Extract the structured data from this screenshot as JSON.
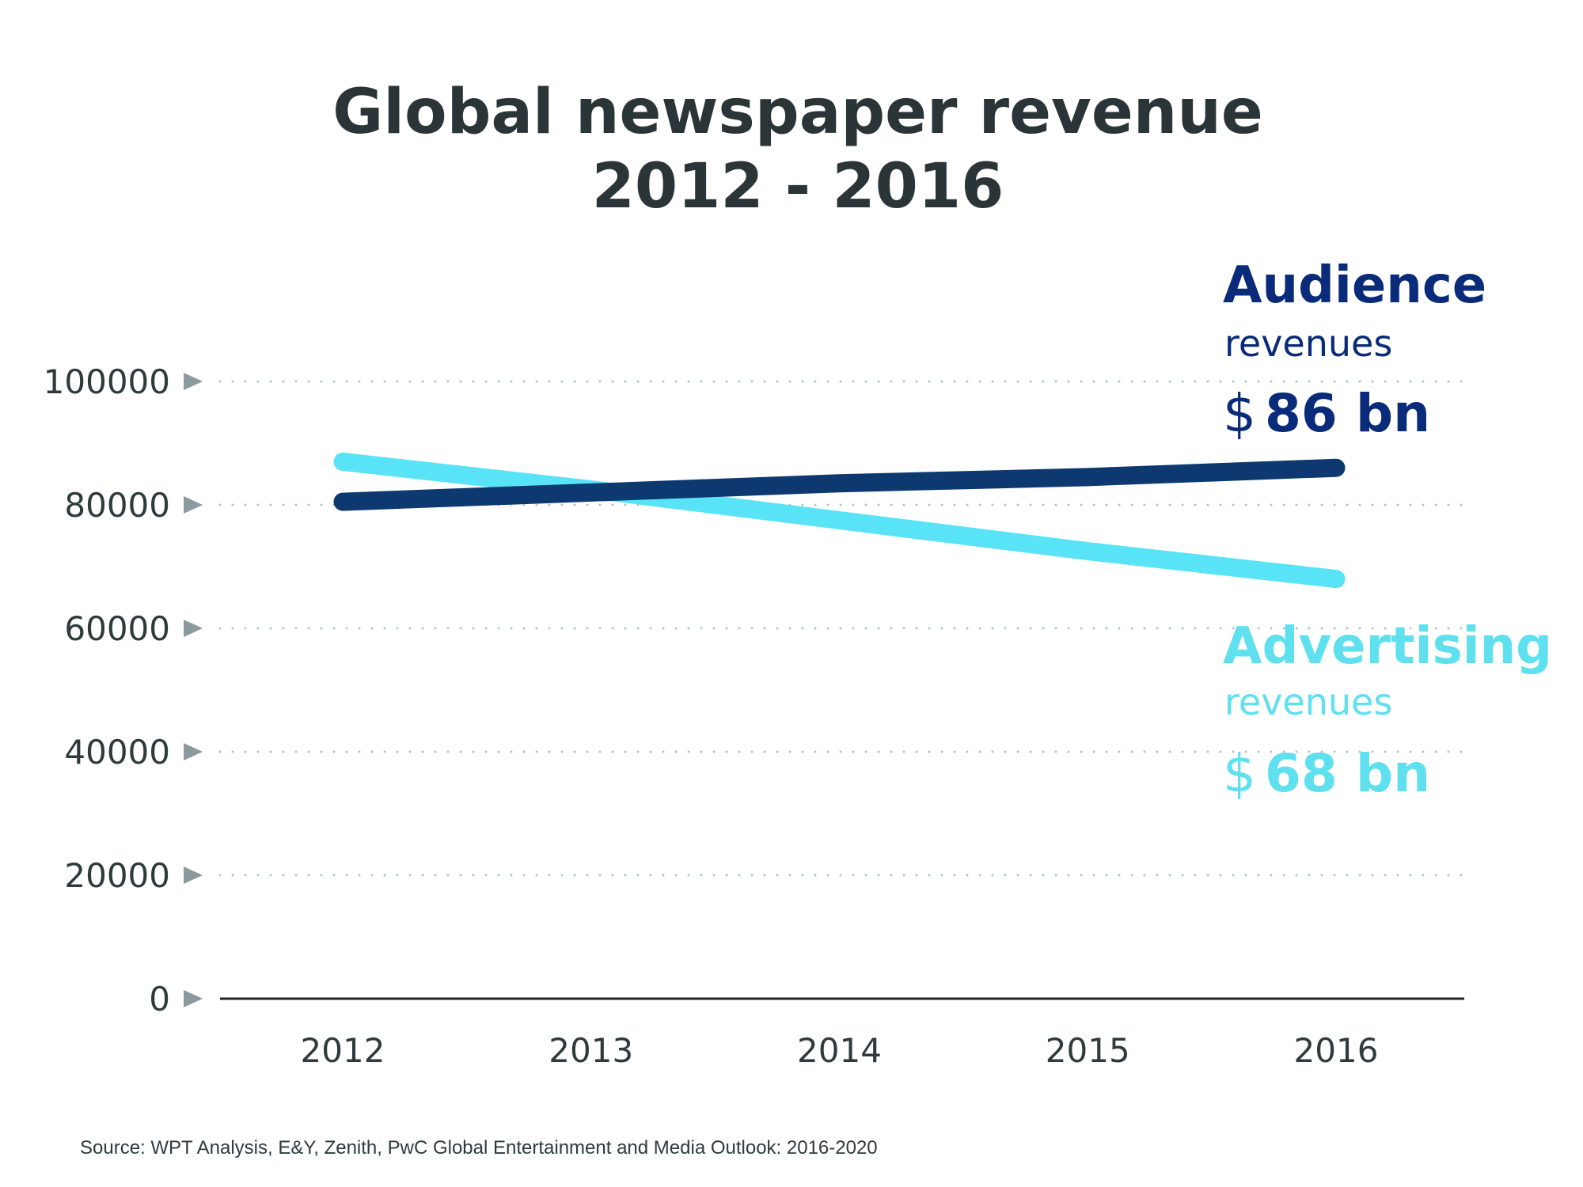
{
  "chart_data": {
    "type": "line",
    "title_lines": [
      "Global newspaper revenue",
      "2012 - 2016"
    ],
    "categories": [
      "2012",
      "2013",
      "2014",
      "2015",
      "2016"
    ],
    "ylim": [
      0,
      100000
    ],
    "yticks": [
      {
        "value": 0,
        "label": "0"
      },
      {
        "value": 20000,
        "label": "20000"
      },
      {
        "value": 40000,
        "label": "40000"
      },
      {
        "value": 60000,
        "label": "60000"
      },
      {
        "value": 80000,
        "label": "80000"
      },
      {
        "value": 100000,
        "label": "100000"
      }
    ],
    "grid": "dotted-horizontal",
    "series": [
      {
        "name": "Advertising",
        "values": [
          87000,
          82500,
          77500,
          72500,
          68000
        ]
      },
      {
        "name": "Audience",
        "values": [
          80500,
          82000,
          83500,
          84500,
          86000
        ]
      }
    ],
    "annotations": [
      {
        "series": "Audience",
        "heading": "Audience",
        "sub": "revenues",
        "currency": "$",
        "amount": "86 bn"
      },
      {
        "series": "Advertising",
        "heading": "Advertising",
        "sub": "revenues",
        "currency": "$",
        "amount": "68 bn"
      }
    ],
    "source": "Source: WPT Analysis, E&Y, Zenith, PwC Global Entertainment and Media Outlook: 2016-2020"
  },
  "colors": {
    "audience": "#0d3970",
    "audience_text": "#0a2a7a",
    "advertising": "#58e4f6",
    "advertising_text": "#5ee0ef",
    "axis": "#1e2426",
    "grid": "#b7c2c4",
    "tick_marker": "#8b9a9e"
  }
}
